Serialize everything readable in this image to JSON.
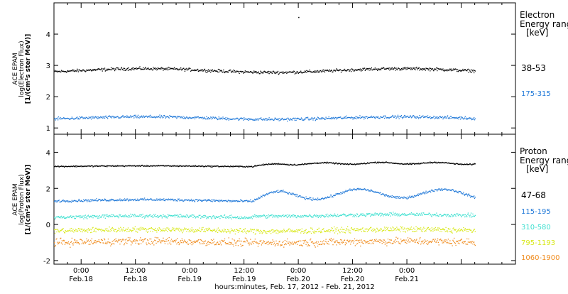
{
  "colors": {
    "black": "#000000",
    "blue": "#1f78d8",
    "cyan": "#3fe0d0",
    "yellow": "#d8e81a",
    "orange": "#f08c1e"
  },
  "chart_data": [
    {
      "type": "scatter",
      "ylabel_lines": [
        "ACE EPAM",
        "log(Electron Flux)",
        "[1/(cm²s ster MeV)]"
      ],
      "legend_title_lines": [
        "Electron",
        "Energy ranges",
        "[keV]"
      ],
      "ylim": [
        0.8,
        5.0
      ],
      "yticks": [
        1,
        2,
        3,
        4
      ],
      "x_range_hours": [
        -6,
        96
      ],
      "data_end_hour": 87,
      "series": [
        {
          "name": "38-53",
          "color": "#000000",
          "level": 2.85,
          "spread": 0.07,
          "wave": 0.06
        },
        {
          "name": "175-315",
          "color": "#1f78d8",
          "level": 1.33,
          "spread": 0.07,
          "wave": 0.04
        }
      ],
      "extra_points": [
        {
          "x": 48,
          "y": 4.55
        }
      ]
    },
    {
      "type": "scatter",
      "ylabel_lines": [
        "ACE EPAM",
        "log(Proton Flux)",
        "[1/(cm²s ster MeV)]"
      ],
      "legend_title_lines": [
        "Proton",
        "Energy ranges",
        "[keV]"
      ],
      "ylim": [
        -2.2,
        5.0
      ],
      "yticks": [
        -2,
        0,
        2,
        4
      ],
      "x_range_hours": [
        -6,
        96
      ],
      "data_end_hour": 87,
      "series": [
        {
          "name": "47-68",
          "color": "#000000",
          "level": 3.25,
          "spread": 0.05,
          "wave": 0.02
        },
        {
          "name": "115-195",
          "color": "#1f78d8",
          "level": 1.35,
          "spread": 0.1,
          "wave": 0.05
        },
        {
          "name": "310-580",
          "color": "#3fe0d0",
          "level": 0.45,
          "spread": 0.15,
          "wave": 0.05
        },
        {
          "name": "795-1193",
          "color": "#d8e81a",
          "level": -0.3,
          "spread": 0.22,
          "wave": 0.05
        },
        {
          "name": "1060-1900",
          "color": "#f08c1e",
          "level": -0.95,
          "spread": 0.3,
          "wave": 0.05
        }
      ]
    }
  ],
  "x_axis": {
    "ticks": [
      {
        "hour": 0,
        "time": "0:00",
        "date": "Feb.18"
      },
      {
        "hour": 12,
        "time": "12:00",
        "date": "Feb.18"
      },
      {
        "hour": 24,
        "time": "0:00",
        "date": "Feb.19"
      },
      {
        "hour": 36,
        "time": "12:00",
        "date": "Feb.19"
      },
      {
        "hour": 48,
        "time": "0:00",
        "date": "Feb.20"
      },
      {
        "hour": 60,
        "time": "12:00",
        "date": "Feb.20"
      },
      {
        "hour": 72,
        "time": "0:00",
        "date": "Feb.21"
      }
    ],
    "label": "hours:minutes, Feb. 17, 2012 - Feb. 21, 2012"
  }
}
